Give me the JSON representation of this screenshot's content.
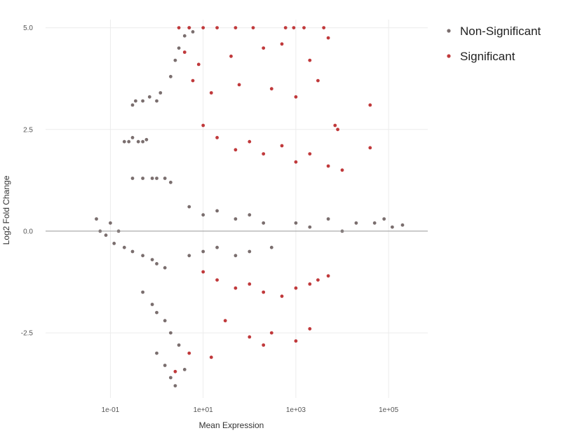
{
  "chart_data": {
    "type": "scatter",
    "title": "",
    "xlabel": "Mean Expression",
    "ylabel": "Log2 Fold Change",
    "x_scale": "log10",
    "xlim": [
      0.004,
      700000
    ],
    "ylim": [
      -4.1,
      5.2
    ],
    "x_ticks": [
      {
        "value": 0.1,
        "label": "1e-01"
      },
      {
        "value": 10,
        "label": "1e+01"
      },
      {
        "value": 1000,
        "label": "1e+03"
      },
      {
        "value": 100000,
        "label": "1e+05"
      }
    ],
    "y_ticks": [
      {
        "value": -2.5,
        "label": "-2.5"
      },
      {
        "value": 0,
        "label": "0.0"
      },
      {
        "value": 2.5,
        "label": "2.5"
      },
      {
        "value": 5,
        "label": "5.0"
      }
    ],
    "grid": true,
    "reference_line": {
      "y": 0,
      "color": "#9a9a9a"
    },
    "legend": {
      "position": "top-right"
    },
    "series": [
      {
        "name": "Non-Significant",
        "color": "#7a6e6e",
        "points": [
          [
            0.05,
            0.3
          ],
          [
            0.06,
            0.0
          ],
          [
            0.08,
            -0.1
          ],
          [
            0.1,
            0.2
          ],
          [
            0.12,
            -0.3
          ],
          [
            0.15,
            0.0
          ],
          [
            0.2,
            2.2
          ],
          [
            0.25,
            2.2
          ],
          [
            0.3,
            2.3
          ],
          [
            0.4,
            2.2
          ],
          [
            0.5,
            2.2
          ],
          [
            0.6,
            2.25
          ],
          [
            0.3,
            3.1
          ],
          [
            0.35,
            3.2
          ],
          [
            0.5,
            3.2
          ],
          [
            0.7,
            3.3
          ],
          [
            1.0,
            3.2
          ],
          [
            1.2,
            3.4
          ],
          [
            0.3,
            1.3
          ],
          [
            0.5,
            1.3
          ],
          [
            0.8,
            1.3
          ],
          [
            1.0,
            1.3
          ],
          [
            1.5,
            1.3
          ],
          [
            2.0,
            1.2
          ],
          [
            0.2,
            -0.4
          ],
          [
            0.3,
            -0.5
          ],
          [
            0.5,
            -0.6
          ],
          [
            0.8,
            -0.7
          ],
          [
            1.0,
            -0.8
          ],
          [
            1.5,
            -0.9
          ],
          [
            0.5,
            -1.5
          ],
          [
            0.8,
            -1.8
          ],
          [
            1.0,
            -2.0
          ],
          [
            1.5,
            -2.2
          ],
          [
            2.0,
            -2.5
          ],
          [
            3.0,
            -2.8
          ],
          [
            2.0,
            3.8
          ],
          [
            2.5,
            4.2
          ],
          [
            3.0,
            4.5
          ],
          [
            4.0,
            4.8
          ],
          [
            5.0,
            5.0
          ],
          [
            6.0,
            4.9
          ],
          [
            1.0,
            -3.0
          ],
          [
            1.5,
            -3.3
          ],
          [
            2.0,
            -3.6
          ],
          [
            2.5,
            -3.8
          ],
          [
            4.0,
            -3.4
          ],
          [
            5,
            0.6
          ],
          [
            10,
            0.4
          ],
          [
            20,
            0.5
          ],
          [
            50,
            0.3
          ],
          [
            100,
            0.4
          ],
          [
            200,
            0.2
          ],
          [
            5,
            -0.6
          ],
          [
            10,
            -0.5
          ],
          [
            20,
            -0.4
          ],
          [
            50,
            -0.6
          ],
          [
            100,
            -0.5
          ],
          [
            300,
            -0.4
          ],
          [
            1000,
            0.2
          ],
          [
            2000,
            0.1
          ],
          [
            5000,
            0.3
          ],
          [
            10000,
            0.0
          ],
          [
            20000,
            0.2
          ],
          [
            50000,
            0.2
          ],
          [
            80000,
            0.3
          ],
          [
            120000,
            0.1
          ],
          [
            200000,
            0.15
          ]
        ]
      },
      {
        "name": "Significant",
        "color": "#c0393b",
        "points": [
          [
            3.0,
            5.0
          ],
          [
            5.0,
            5.0
          ],
          [
            10,
            5.0
          ],
          [
            20,
            5.0
          ],
          [
            50,
            5.0
          ],
          [
            120,
            5.0
          ],
          [
            600,
            5.0
          ],
          [
            900,
            5.0
          ],
          [
            1500,
            5.0
          ],
          [
            4000,
            5.0
          ],
          [
            5000,
            4.75
          ],
          [
            4,
            4.4
          ],
          [
            8,
            4.1
          ],
          [
            40,
            4.3
          ],
          [
            200,
            4.5
          ],
          [
            500,
            4.6
          ],
          [
            2000,
            4.2
          ],
          [
            6,
            3.7
          ],
          [
            15,
            3.4
          ],
          [
            60,
            3.6
          ],
          [
            300,
            3.5
          ],
          [
            1000,
            3.3
          ],
          [
            3000,
            3.7
          ],
          [
            40000,
            3.1
          ],
          [
            40000,
            2.05
          ],
          [
            7000,
            2.6
          ],
          [
            8000,
            2.5
          ],
          [
            10,
            2.6
          ],
          [
            20,
            2.3
          ],
          [
            50,
            2.0
          ],
          [
            100,
            2.2
          ],
          [
            200,
            1.9
          ],
          [
            500,
            2.1
          ],
          [
            1000,
            1.7
          ],
          [
            2000,
            1.9
          ],
          [
            5000,
            1.6
          ],
          [
            10000,
            1.5
          ],
          [
            10,
            -1.0
          ],
          [
            20,
            -1.2
          ],
          [
            50,
            -1.4
          ],
          [
            100,
            -1.3
          ],
          [
            200,
            -1.5
          ],
          [
            500,
            -1.6
          ],
          [
            1000,
            -1.4
          ],
          [
            2000,
            -1.3
          ],
          [
            3000,
            -1.2
          ],
          [
            5000,
            -1.1
          ],
          [
            30,
            -2.2
          ],
          [
            100,
            -2.6
          ],
          [
            300,
            -2.5
          ],
          [
            1000,
            -2.7
          ],
          [
            2000,
            -2.4
          ],
          [
            5,
            -3.0
          ],
          [
            15,
            -3.1
          ],
          [
            2.5,
            -3.45
          ],
          [
            200,
            -2.8
          ]
        ]
      }
    ]
  }
}
